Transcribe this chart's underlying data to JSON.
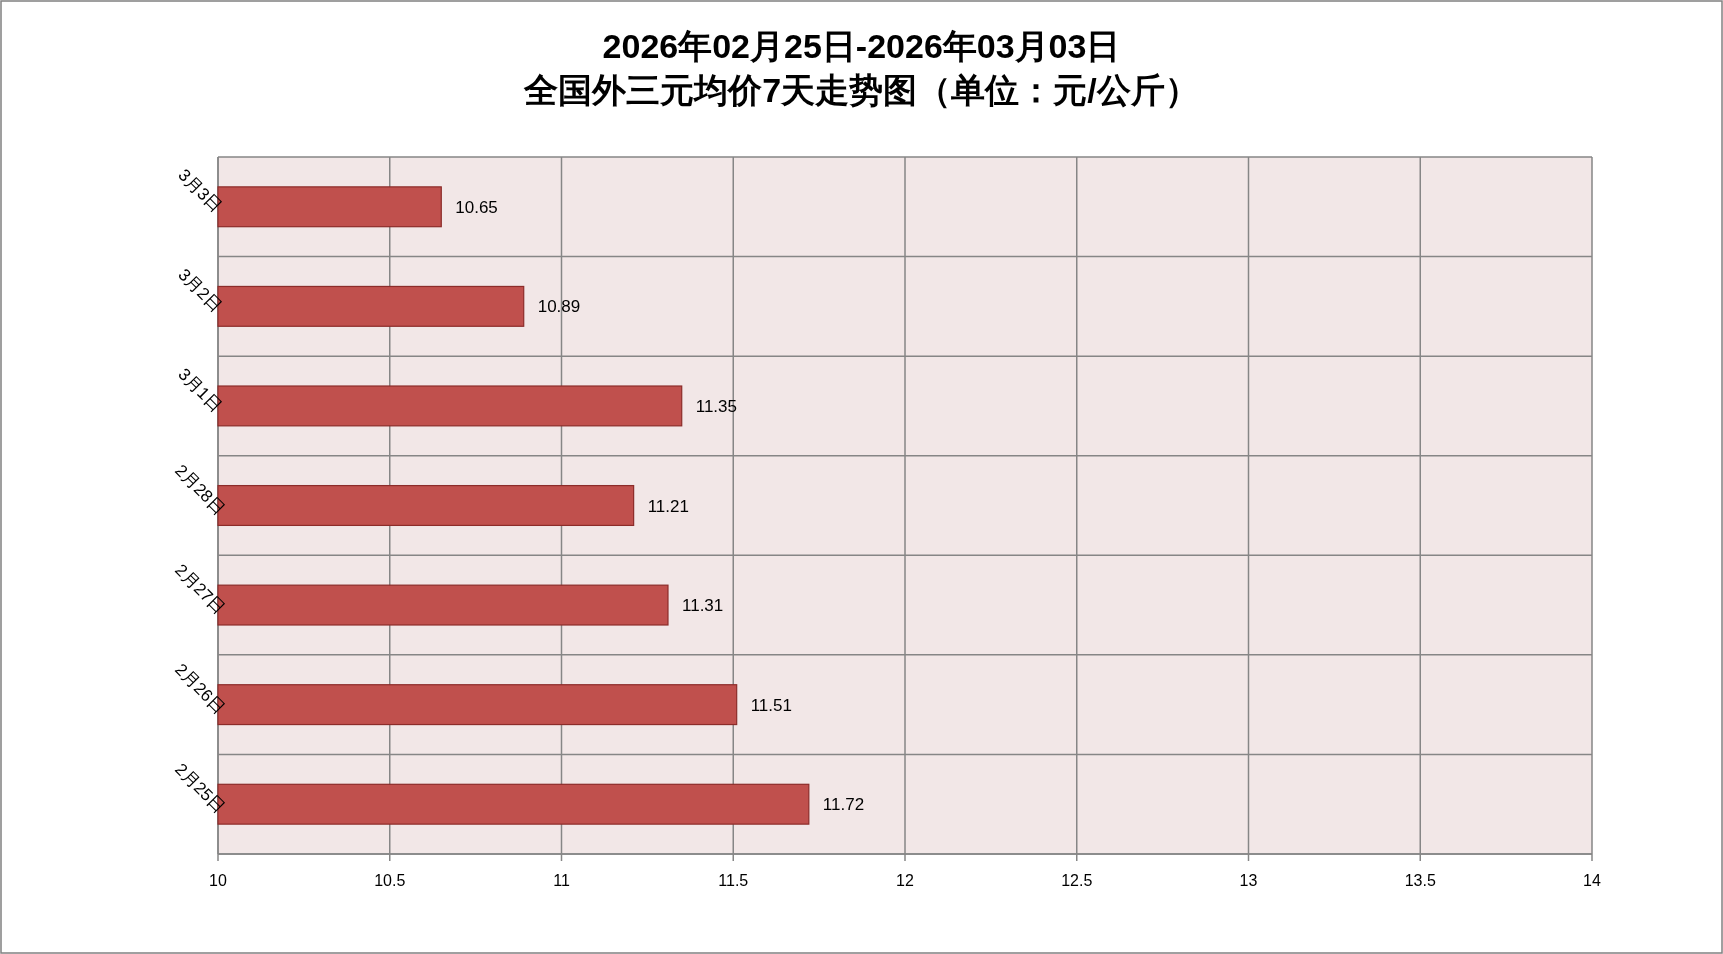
{
  "chart_data": {
    "type": "bar",
    "orientation": "horizontal",
    "title": "2026年02月25日-2026年03月03日",
    "subtitle": "全国外三元均价7天走势图（单位：元/公斤）",
    "categories": [
      "3月3日",
      "3月2日",
      "3月1日",
      "2月28日",
      "2月27日",
      "2月26日",
      "2月25日"
    ],
    "values": [
      10.65,
      10.89,
      11.35,
      11.21,
      11.31,
      11.51,
      11.72
    ],
    "color": "#c0504d",
    "xlim": [
      10,
      14
    ],
    "xticks": [
      10,
      10.5,
      11,
      11.5,
      12,
      12.5,
      13,
      13.5,
      14
    ],
    "grid": true,
    "data_labels": true
  }
}
